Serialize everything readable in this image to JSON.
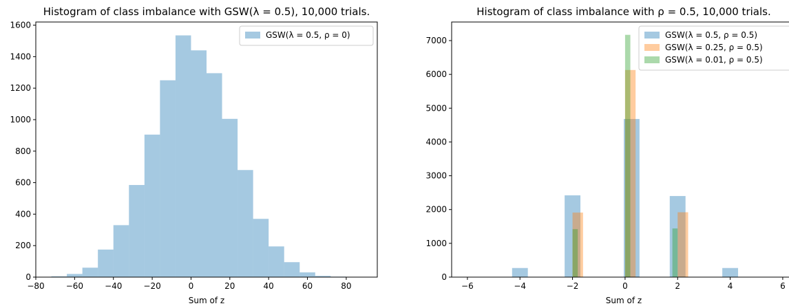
{
  "chart_data": [
    {
      "type": "bar",
      "title": "Histogram of class imbalance with GSW(λ = 0.5), 10,000 trials.",
      "xlabel": "Sum of z",
      "ylabel": "",
      "xlim": [
        -80,
        96
      ],
      "ylim": [
        0,
        1620
      ],
      "xticks": [
        -80,
        -60,
        -40,
        -20,
        0,
        20,
        40,
        60,
        80
      ],
      "xtick_labels": [
        "−80",
        "−60",
        "−40",
        "−20",
        "0",
        "20",
        "40",
        "60",
        "80"
      ],
      "yticks": [
        0,
        200,
        400,
        600,
        800,
        1000,
        1200,
        1400,
        1600
      ],
      "ytick_labels": [
        "0",
        "200",
        "400",
        "600",
        "800",
        "1000",
        "1200",
        "1400",
        "1600"
      ],
      "legend_position": "top-right",
      "series": [
        {
          "name": "GSW(λ = 0.5, ρ = 0)",
          "color": "#1f77b4",
          "opacity": 0.4,
          "bins": [
            [
              -72,
              -64,
              5
            ],
            [
              -64,
              -56,
              20
            ],
            [
              -56,
              -48,
              60
            ],
            [
              -48,
              -40,
              175
            ],
            [
              -40,
              -32,
              330
            ],
            [
              -32,
              -24,
              585
            ],
            [
              -24,
              -16,
              905
            ],
            [
              -16,
              -8,
              1250
            ],
            [
              -8,
              0,
              1535
            ],
            [
              0,
              8,
              1440
            ],
            [
              8,
              16,
              1295
            ],
            [
              16,
              24,
              1005
            ],
            [
              24,
              32,
              680
            ],
            [
              32,
              40,
              370
            ],
            [
              40,
              48,
              195
            ],
            [
              48,
              56,
              95
            ],
            [
              56,
              64,
              30
            ],
            [
              64,
              72,
              8
            ],
            [
              72,
              80,
              3
            ],
            [
              80,
              88,
              1
            ]
          ]
        }
      ]
    },
    {
      "type": "bar",
      "title": "Histogram of class imbalance with ρ = 0.5, 10,000 trials.",
      "xlabel": "Sum of z",
      "ylabel": "",
      "xlim": [
        -6.6,
        6.5
      ],
      "ylim": [
        0,
        7550
      ],
      "xticks": [
        -6,
        -4,
        -2,
        0,
        2,
        4,
        6
      ],
      "xtick_labels": [
        "−6",
        "−4",
        "−2",
        "0",
        "2",
        "4",
        "6"
      ],
      "yticks": [
        0,
        1000,
        2000,
        3000,
        4000,
        5000,
        6000,
        7000
      ],
      "ytick_labels": [
        "0",
        "1000",
        "2000",
        "3000",
        "4000",
        "5000",
        "6000",
        "7000"
      ],
      "legend_position": "top-right",
      "series": [
        {
          "name": "GSW(λ = 0.5, ρ = 0.5)",
          "color": "#1f77b4",
          "opacity": 0.4,
          "bins": [
            [
              -4.3,
              -3.7,
              270
            ],
            [
              -2.3,
              -1.7,
              2420
            ],
            [
              -0.05,
              0.55,
              4680
            ],
            [
              1.7,
              2.3,
              2400
            ],
            [
              3.7,
              4.3,
              270
            ]
          ]
        },
        {
          "name": "GSW(λ = 0.25, ρ = 0.5)",
          "color": "#ff7f0e",
          "opacity": 0.4,
          "bins": [
            [
              -2.0,
              -1.6,
              1910
            ],
            [
              0.0,
              0.4,
              6130
            ],
            [
              2.0,
              2.4,
              1920
            ]
          ]
        },
        {
          "name": "GSW(λ = 0.01, ρ = 0.5)",
          "color": "#2ca02c",
          "opacity": 0.4,
          "bins": [
            [
              -2.0,
              -1.8,
              1420
            ],
            [
              0.0,
              0.2,
              7170
            ],
            [
              1.8,
              2.0,
              1440
            ]
          ]
        }
      ]
    }
  ]
}
